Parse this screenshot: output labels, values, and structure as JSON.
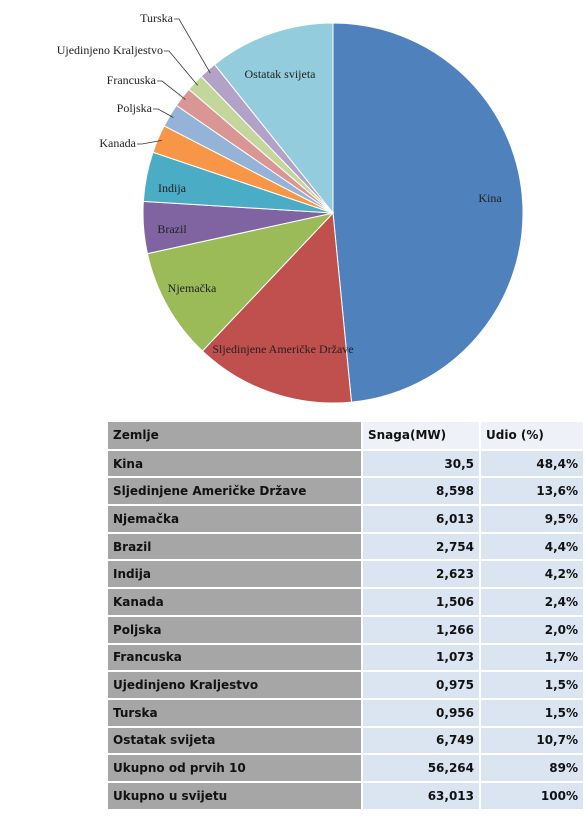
{
  "chart_data": {
    "type": "pie",
    "categories": [
      "Kina",
      "Sljedinjene Američke Države",
      "Njemačka",
      "Brazil",
      "Indija",
      "Kanada",
      "Poljska",
      "Francuska",
      "Ujedinjeno Kraljestvo",
      "Turska",
      "Ostatak svijeta"
    ],
    "values": [
      48.4,
      13.6,
      9.5,
      4.4,
      4.2,
      2.4,
      2.0,
      1.7,
      1.5,
      1.5,
      10.7
    ],
    "colors": [
      "#4f81bd",
      "#c0504d",
      "#9bbb59",
      "#8064a2",
      "#4bacc6",
      "#f79646",
      "#95b3d7",
      "#d99694",
      "#c3d69b",
      "#b3a2c7",
      "#93cddd"
    ]
  },
  "table": {
    "header": [
      "Zemlje",
      "Snaga(MW)",
      "Udio (%)"
    ],
    "rows": [
      [
        "Kina",
        "30,5",
        "48,4%"
      ],
      [
        "Sljedinjene Američke Države",
        "8,598",
        "13,6%"
      ],
      [
        "Njemačka",
        "6,013",
        "9,5%"
      ],
      [
        "Brazil",
        "2,754",
        "4,4%"
      ],
      [
        "Indija",
        "2,623",
        "4,2%"
      ],
      [
        "Kanada",
        "1,506",
        "2,4%"
      ],
      [
        "Poljska",
        "1,266",
        "2,0%"
      ],
      [
        "Francuska",
        "1,073",
        "1,7%"
      ],
      [
        "Ujedinjeno Kraljestvo",
        "0,975",
        "1,5%"
      ],
      [
        "Turska",
        "0,956",
        "1,5%"
      ],
      [
        "Ostatak svijeta",
        "6,749",
        "10,7%"
      ],
      [
        "Ukupno od prvih 10",
        "56,264",
        "89%"
      ],
      [
        "Ukupno u svijetu",
        "63,013",
        "100%"
      ]
    ]
  }
}
